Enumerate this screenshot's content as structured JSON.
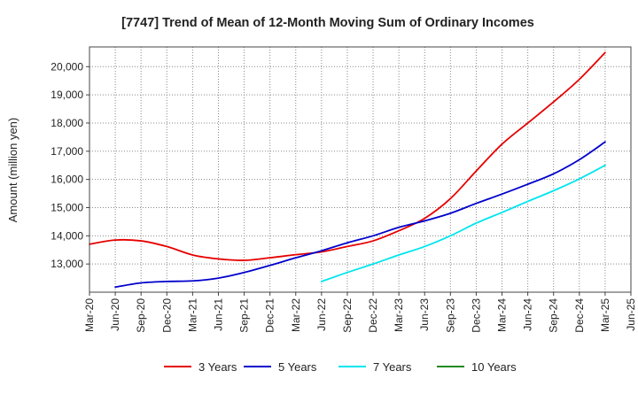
{
  "chart_data": {
    "type": "line",
    "title": "[7747]  Trend of Mean of 12-Month Moving Sum of Ordinary Incomes",
    "xlabel": "",
    "ylabel": "Amount (million yen)",
    "ylim": [
      12000,
      20700
    ],
    "yticks": [
      13000,
      14000,
      15000,
      16000,
      17000,
      18000,
      19000,
      20000
    ],
    "ytick_labels": [
      "13,000",
      "14,000",
      "15,000",
      "16,000",
      "17,000",
      "18,000",
      "19,000",
      "20,000"
    ],
    "categories": [
      "Mar-20",
      "Jun-20",
      "Sep-20",
      "Dec-20",
      "Mar-21",
      "Jun-21",
      "Sep-21",
      "Dec-21",
      "Mar-22",
      "Jun-22",
      "Sep-22",
      "Dec-22",
      "Mar-23",
      "Jun-23",
      "Sep-23",
      "Dec-23",
      "Mar-24",
      "Jun-24",
      "Sep-24",
      "Dec-24",
      "Mar-25",
      "Jun-25"
    ],
    "grid": true,
    "legend_position": "bottom",
    "series": [
      {
        "name": "3 Years",
        "color": "#e60000",
        "values": [
          13700,
          13850,
          13820,
          13620,
          13320,
          13180,
          13130,
          13220,
          13330,
          13430,
          13620,
          13820,
          14180,
          14620,
          15320,
          16300,
          17250,
          18000,
          18750,
          19550,
          20500,
          null
        ]
      },
      {
        "name": "5 Years",
        "color": "#0000cc",
        "values": [
          null,
          12180,
          12330,
          12380,
          12400,
          12500,
          12700,
          12950,
          13220,
          13470,
          13750,
          14000,
          14300,
          14530,
          14800,
          15150,
          15480,
          15830,
          16200,
          16700,
          17330,
          null
        ]
      },
      {
        "name": "7 Years",
        "color": "#00e5ee",
        "values": [
          null,
          null,
          null,
          null,
          null,
          null,
          null,
          null,
          null,
          12380,
          12700,
          13000,
          13320,
          13620,
          14000,
          14450,
          14830,
          15220,
          15600,
          16020,
          16500,
          null
        ]
      },
      {
        "name": "10 Years",
        "color": "#228b22",
        "values": [
          null,
          null,
          null,
          null,
          null,
          null,
          null,
          null,
          null,
          null,
          null,
          null,
          null,
          null,
          null,
          null,
          null,
          null,
          null,
          null,
          null,
          null
        ]
      }
    ]
  }
}
